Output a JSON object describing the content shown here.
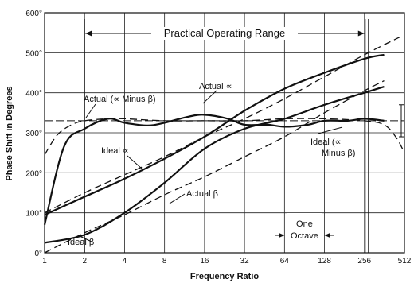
{
  "chart_data": {
    "type": "line",
    "title": "",
    "xlabel": "Frequency Ratio",
    "ylabel": "Phase Shift in Degrees",
    "xscale": "log2",
    "xlim": [
      1,
      512
    ],
    "ylim": [
      0,
      600
    ],
    "grid": true,
    "x_ticks": [
      1,
      2,
      4,
      8,
      16,
      32,
      64,
      128,
      256,
      512
    ],
    "x_tick_labels": [
      "1",
      "2",
      "4",
      "8",
      "16",
      "32",
      "64",
      "128",
      "256",
      "512"
    ],
    "y_ticks": [
      0,
      100,
      200,
      300,
      400,
      500,
      600
    ],
    "y_tick_labels": [
      "0°",
      "100°",
      "200°",
      "300°",
      "400°",
      "500°",
      "600°"
    ],
    "series": [
      {
        "name": "Actual ∝",
        "style": "solid",
        "x": [
          1,
          2,
          4,
          8,
          16,
          32,
          64,
          128,
          256,
          360
        ],
        "y": [
          95,
          140,
          185,
          235,
          290,
          355,
          410,
          450,
          485,
          495
        ]
      },
      {
        "name": "Ideal ∝",
        "style": "dashed",
        "x": [
          1,
          2,
          4,
          8,
          16,
          32,
          64,
          128,
          256,
          512
        ],
        "y": [
          100,
          150,
          195,
          240,
          290,
          335,
          385,
          440,
          495,
          545
        ]
      },
      {
        "name": "Actual β",
        "style": "solid",
        "x": [
          1,
          2,
          4,
          8,
          16,
          32,
          64,
          128,
          256,
          360
        ],
        "y": [
          25,
          45,
          100,
          175,
          260,
          310,
          335,
          370,
          400,
          415
        ]
      },
      {
        "name": "Ideal β",
        "style": "dashed",
        "x": [
          1,
          2,
          4,
          8,
          16,
          32,
          64,
          128,
          256,
          360
        ],
        "y": [
          0,
          50,
          95,
          145,
          190,
          240,
          290,
          350,
          405,
          430
        ]
      },
      {
        "name": "Actual (∝ Minus β)",
        "style": "solid",
        "x": [
          1,
          1.4,
          2,
          3,
          4,
          6,
          8,
          12,
          16,
          24,
          32,
          48,
          64,
          96,
          128,
          192,
          256,
          360
        ],
        "y": [
          70,
          265,
          310,
          335,
          325,
          318,
          325,
          340,
          345,
          335,
          320,
          320,
          315,
          320,
          330,
          330,
          335,
          330
        ]
      },
      {
        "name": "Ideal (∝ Minus β)",
        "style": "dashed",
        "x": [
          1,
          1.25,
          1.6,
          2,
          3,
          4,
          8,
          16,
          32,
          64,
          128,
          256,
          360,
          440,
          512
        ],
        "y": [
          245,
          295,
          320,
          330,
          335,
          335,
          330,
          330,
          330,
          335,
          335,
          330,
          320,
          290,
          250
        ]
      }
    ],
    "annotations": {
      "practical_range": {
        "label": "Practical Operating Range",
        "from": 2,
        "to": 256
      },
      "one_octave": {
        "label_line1": "One",
        "label_line2": "Octave",
        "from": 64,
        "to": 128
      },
      "reference_phase": 330
    }
  }
}
